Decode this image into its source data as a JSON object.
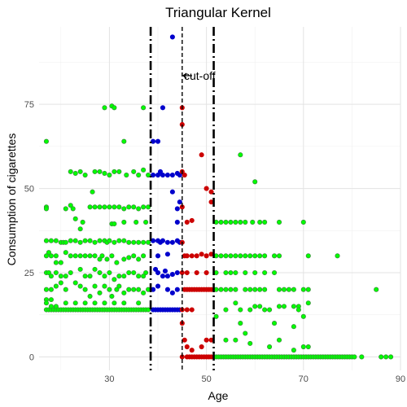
{
  "chart_data": {
    "type": "scatter",
    "title": "Triangular Kernel",
    "xlabel": "Age",
    "ylabel": "Consumption of cigarettes",
    "xlim": [
      15.5,
      90
    ],
    "ylim": [
      -4,
      98
    ],
    "xticks": [
      30,
      50,
      70,
      90
    ],
    "yticks": [
      0,
      25,
      50,
      75
    ],
    "grid": true,
    "colors": {
      "green": "#00ff00",
      "blue": "#0000cc",
      "red": "#cc0000",
      "outline_green": "#3a8a3a"
    },
    "vlines": [
      {
        "x": 38.5,
        "style": "dashdot",
        "width": 2.6
      },
      {
        "x": 45,
        "style": "dashed",
        "width": 1.4
      },
      {
        "x": 51.5,
        "style": "dashdot",
        "width": 2.6
      }
    ],
    "annotation": {
      "text": "cut-off",
      "x": 45.2,
      "y": 83.5
    },
    "series": [
      {
        "color": "green",
        "rows": [
          {
            "y": 14,
            "x_from": 17,
            "x_to": 38,
            "step": 0.5
          },
          {
            "y": 0,
            "x_from": 52,
            "x_to": 80,
            "step": 0.5
          }
        ],
        "points": [
          [
            17,
            64
          ],
          [
            29,
            74
          ],
          [
            30.5,
            74.5
          ],
          [
            31,
            74
          ],
          [
            33,
            64
          ],
          [
            37,
            74
          ],
          [
            22,
            55
          ],
          [
            23,
            54.5
          ],
          [
            24,
            55
          ],
          [
            25,
            54
          ],
          [
            26.5,
            49
          ],
          [
            27,
            55
          ],
          [
            28,
            55
          ],
          [
            29,
            54.5
          ],
          [
            30,
            54
          ],
          [
            31,
            55
          ],
          [
            32,
            55
          ],
          [
            33.5,
            54
          ],
          [
            35,
            55
          ],
          [
            36,
            54
          ],
          [
            37,
            55.5
          ],
          [
            38,
            54
          ],
          [
            17,
            44.5
          ],
          [
            17,
            44
          ],
          [
            21,
            44
          ],
          [
            22,
            45
          ],
          [
            22.5,
            44
          ],
          [
            23,
            41
          ],
          [
            24,
            38
          ],
          [
            24.5,
            40
          ],
          [
            26,
            44.5
          ],
          [
            27,
            44.5
          ],
          [
            28,
            44.5
          ],
          [
            29,
            44.5
          ],
          [
            30,
            44.5
          ],
          [
            31,
            44.5
          ],
          [
            32,
            44.5
          ],
          [
            33,
            44
          ],
          [
            34,
            44.5
          ],
          [
            35,
            44.5
          ],
          [
            36,
            44
          ],
          [
            37,
            44.5
          ],
          [
            38,
            44.5
          ],
          [
            30.5,
            39.5
          ],
          [
            31,
            39.5
          ],
          [
            33,
            40
          ],
          [
            35.5,
            40
          ],
          [
            37.5,
            40
          ],
          [
            17,
            34.5
          ],
          [
            18,
            34.5
          ],
          [
            19,
            34.5
          ],
          [
            20,
            34
          ],
          [
            20.5,
            34
          ],
          [
            21,
            34
          ],
          [
            22,
            34.5
          ],
          [
            23,
            34.5
          ],
          [
            24,
            34
          ],
          [
            25,
            34.5
          ],
          [
            26,
            34.5
          ],
          [
            27,
            34
          ],
          [
            28,
            34.5
          ],
          [
            29,
            34.5
          ],
          [
            29.5,
            34
          ],
          [
            30,
            34.5
          ],
          [
            31,
            34
          ],
          [
            32,
            34.5
          ],
          [
            33,
            34.5
          ],
          [
            34,
            34
          ],
          [
            35,
            34
          ],
          [
            36,
            34
          ],
          [
            37,
            34
          ],
          [
            38,
            34
          ],
          [
            17,
            30
          ],
          [
            18,
            30
          ],
          [
            19,
            30
          ],
          [
            17.5,
            31
          ],
          [
            19,
            28
          ],
          [
            20,
            28
          ],
          [
            21,
            31
          ],
          [
            22,
            30
          ],
          [
            23,
            30
          ],
          [
            24,
            30
          ],
          [
            25,
            30
          ],
          [
            26,
            30
          ],
          [
            27,
            30
          ],
          [
            28,
            29
          ],
          [
            28.5,
            30
          ],
          [
            29.5,
            29
          ],
          [
            30.5,
            30
          ],
          [
            31.5,
            28
          ],
          [
            33,
            29
          ],
          [
            34,
            29.5
          ],
          [
            35,
            30
          ],
          [
            36,
            29
          ],
          [
            37,
            30
          ],
          [
            17,
            25
          ],
          [
            17.5,
            25
          ],
          [
            18,
            24
          ],
          [
            19,
            25
          ],
          [
            20,
            24
          ],
          [
            21,
            24
          ],
          [
            22,
            25
          ],
          [
            24,
            26
          ],
          [
            25,
            24
          ],
          [
            26,
            24
          ],
          [
            27,
            26
          ],
          [
            28,
            25
          ],
          [
            29,
            24
          ],
          [
            30,
            25
          ],
          [
            31,
            23
          ],
          [
            32,
            24
          ],
          [
            33,
            24
          ],
          [
            34,
            25
          ],
          [
            35,
            25
          ],
          [
            36,
            24
          ],
          [
            37,
            24
          ],
          [
            37.5,
            25
          ],
          [
            17,
            20
          ],
          [
            18,
            20
          ],
          [
            19,
            21
          ],
          [
            20,
            22
          ],
          [
            21,
            20
          ],
          [
            23,
            22
          ],
          [
            24,
            21
          ],
          [
            25,
            20
          ],
          [
            26,
            18
          ],
          [
            27,
            21
          ],
          [
            28,
            19
          ],
          [
            29,
            21
          ],
          [
            30,
            20
          ],
          [
            30.5,
            18
          ],
          [
            31.5,
            20
          ],
          [
            32,
            21
          ],
          [
            33,
            19
          ],
          [
            34,
            20
          ],
          [
            35,
            20
          ],
          [
            36,
            20
          ],
          [
            37,
            19
          ],
          [
            38,
            20
          ],
          [
            17,
            17
          ],
          [
            17,
            16
          ],
          [
            18,
            17
          ],
          [
            18,
            15
          ],
          [
            19,
            15
          ],
          [
            21,
            16
          ],
          [
            23,
            16
          ],
          [
            25,
            16
          ],
          [
            27,
            16
          ],
          [
            29,
            16
          ],
          [
            31,
            16
          ],
          [
            33,
            16
          ],
          [
            36,
            16
          ],
          [
            57,
            60
          ],
          [
            60,
            52
          ],
          [
            52,
            40
          ],
          [
            53,
            40
          ],
          [
            54,
            40
          ],
          [
            55,
            40
          ],
          [
            56,
            40
          ],
          [
            57,
            40
          ],
          [
            58,
            40
          ],
          [
            59.5,
            40
          ],
          [
            61,
            40
          ],
          [
            62,
            40
          ],
          [
            65,
            40
          ],
          [
            70,
            40
          ],
          [
            52,
            30
          ],
          [
            53,
            30
          ],
          [
            54,
            30
          ],
          [
            55,
            30
          ],
          [
            56,
            30
          ],
          [
            57,
            30
          ],
          [
            58,
            30
          ],
          [
            59,
            30
          ],
          [
            60,
            30
          ],
          [
            61,
            30
          ],
          [
            62,
            30
          ],
          [
            64,
            30
          ],
          [
            65,
            30
          ],
          [
            71,
            30
          ],
          [
            77,
            30
          ],
          [
            52,
            25
          ],
          [
            54,
            25
          ],
          [
            55,
            25
          ],
          [
            56,
            25
          ],
          [
            58,
            25
          ],
          [
            60,
            25
          ],
          [
            62,
            25
          ],
          [
            64,
            25
          ],
          [
            52,
            20
          ],
          [
            53,
            20
          ],
          [
            54,
            20
          ],
          [
            55,
            20
          ],
          [
            56,
            20
          ],
          [
            58,
            20
          ],
          [
            59,
            20
          ],
          [
            60,
            20
          ],
          [
            61,
            20
          ],
          [
            62,
            20
          ],
          [
            65,
            20
          ],
          [
            66,
            20
          ],
          [
            67,
            20
          ],
          [
            68,
            20
          ],
          [
            70,
            20
          ],
          [
            71,
            20
          ],
          [
            85,
            20
          ],
          [
            56,
            16
          ],
          [
            60,
            15
          ],
          [
            61,
            15
          ],
          [
            63,
            14
          ],
          [
            65,
            15
          ],
          [
            66,
            15
          ],
          [
            68,
            15
          ],
          [
            69,
            15
          ],
          [
            71,
            16
          ],
          [
            52,
            12
          ],
          [
            54,
            14
          ],
          [
            57,
            14
          ],
          [
            59,
            14
          ],
          [
            62,
            14
          ],
          [
            69,
            14
          ],
          [
            70,
            12
          ],
          [
            57,
            10
          ],
          [
            64,
            10
          ],
          [
            68,
            9
          ],
          [
            54,
            5
          ],
          [
            56,
            5
          ],
          [
            58,
            7
          ],
          [
            59,
            4
          ],
          [
            63,
            3
          ],
          [
            65,
            5
          ],
          [
            68,
            2
          ],
          [
            70,
            3
          ],
          [
            71,
            3
          ],
          [
            80.5,
            0
          ],
          [
            82,
            0
          ],
          [
            86,
            0
          ],
          [
            87,
            0
          ],
          [
            88,
            0
          ]
        ]
      },
      {
        "color": "blue",
        "rows": [
          {
            "y": 14,
            "x_from": 39,
            "x_to": 44.5,
            "step": 0.5
          }
        ],
        "points": [
          [
            43,
            95
          ],
          [
            41,
            74
          ],
          [
            39,
            64
          ],
          [
            40,
            64
          ],
          [
            39,
            54
          ],
          [
            40,
            54
          ],
          [
            40.5,
            55
          ],
          [
            41,
            54
          ],
          [
            42,
            54
          ],
          [
            43,
            54
          ],
          [
            44,
            54.5
          ],
          [
            44.5,
            54
          ],
          [
            44,
            44
          ],
          [
            44,
            40
          ],
          [
            43,
            49
          ],
          [
            44.5,
            46
          ],
          [
            39,
            34.5
          ],
          [
            40,
            34.5
          ],
          [
            40.5,
            34
          ],
          [
            41,
            34.5
          ],
          [
            42,
            34
          ],
          [
            43,
            34
          ],
          [
            44,
            34.5
          ],
          [
            44.5,
            34
          ],
          [
            40,
            30
          ],
          [
            42,
            30.5
          ],
          [
            39.5,
            26
          ],
          [
            40,
            25
          ],
          [
            41,
            24
          ],
          [
            42,
            24
          ],
          [
            43,
            24.5
          ],
          [
            44,
            25
          ],
          [
            41.5,
            25.5
          ],
          [
            39,
            20
          ],
          [
            40,
            21
          ],
          [
            42,
            20
          ],
          [
            43,
            19
          ],
          [
            44,
            20
          ]
        ]
      },
      {
        "color": "red",
        "rows": [
          {
            "y": 20,
            "x_from": 46,
            "x_to": 51,
            "step": 0.5
          },
          {
            "y": 0,
            "x_from": 46,
            "x_to": 51,
            "step": 0.5
          }
        ],
        "points": [
          [
            45,
            74
          ],
          [
            45,
            69
          ],
          [
            45,
            55
          ],
          [
            45.5,
            54
          ],
          [
            45,
            44.5
          ],
          [
            46,
            40
          ],
          [
            47,
            40.5
          ],
          [
            45,
            34
          ],
          [
            45.5,
            30
          ],
          [
            45,
            25
          ],
          [
            45.5,
            20
          ],
          [
            45,
            14
          ],
          [
            45,
            10
          ],
          [
            45.5,
            5
          ],
          [
            45,
            0
          ],
          [
            49,
            60
          ],
          [
            50,
            50
          ],
          [
            51,
            46
          ],
          [
            51,
            49
          ],
          [
            46,
            30
          ],
          [
            47,
            30
          ],
          [
            48,
            30
          ],
          [
            49,
            30.5
          ],
          [
            50,
            30
          ],
          [
            51,
            30.5
          ],
          [
            46,
            25
          ],
          [
            48,
            25
          ],
          [
            50,
            25
          ],
          [
            46,
            14
          ],
          [
            47,
            14
          ],
          [
            46,
            3
          ],
          [
            47,
            2
          ],
          [
            49,
            3
          ],
          [
            50,
            5
          ],
          [
            51,
            5
          ]
        ]
      }
    ]
  }
}
